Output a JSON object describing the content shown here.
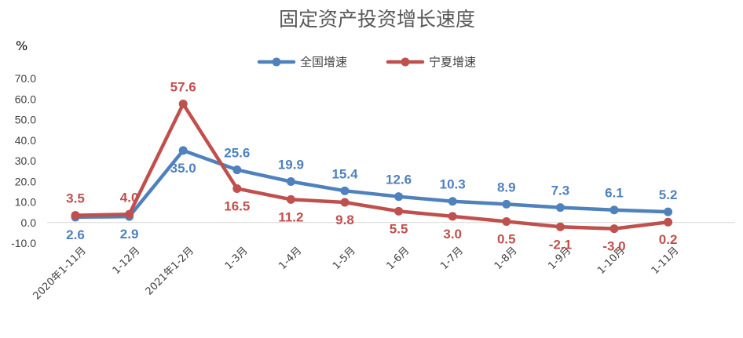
{
  "chart_data": {
    "type": "line",
    "title": "固定资产投资增长速度",
    "ylabel": "%",
    "xlabel": "",
    "categories": [
      "2020年1-11月",
      "1-12月",
      "2021年1-2月",
      "1-3月",
      "1-4月",
      "1-5月",
      "1-6月",
      "1-7月",
      "1-8月",
      "1-9月",
      "1-10月",
      "1-11月"
    ],
    "series": [
      {
        "name": "全国增速",
        "color": "#4F81BD",
        "values": [
          2.6,
          2.9,
          35.0,
          25.6,
          19.9,
          15.4,
          12.6,
          10.3,
          8.9,
          7.3,
          6.1,
          5.2
        ],
        "labels": [
          "2.6",
          "2.9",
          "35.0",
          "25.6",
          "19.9",
          "15.4",
          "12.6",
          "10.3",
          "8.9",
          "7.3",
          "6.1",
          "5.2"
        ]
      },
      {
        "name": "宁夏增速",
        "color": "#C0504D",
        "values": [
          3.5,
          4.0,
          57.6,
          16.5,
          11.2,
          9.8,
          5.5,
          3.0,
          0.5,
          -2.1,
          -3.0,
          0.2
        ],
        "labels": [
          "3.5",
          "4.0",
          "57.6",
          "16.5",
          "11.2",
          "9.8",
          "5.5",
          "3.0",
          "0.5",
          "-2.1",
          "-3.0",
          "0.2"
        ]
      }
    ],
    "ylim": [
      -10,
      70
    ],
    "yticks": [
      "-10.0",
      "0.0",
      "10.0",
      "20.0",
      "30.0",
      "40.0",
      "50.0",
      "60.0",
      "70.0"
    ],
    "grid": false,
    "legend_position": "top-center"
  }
}
